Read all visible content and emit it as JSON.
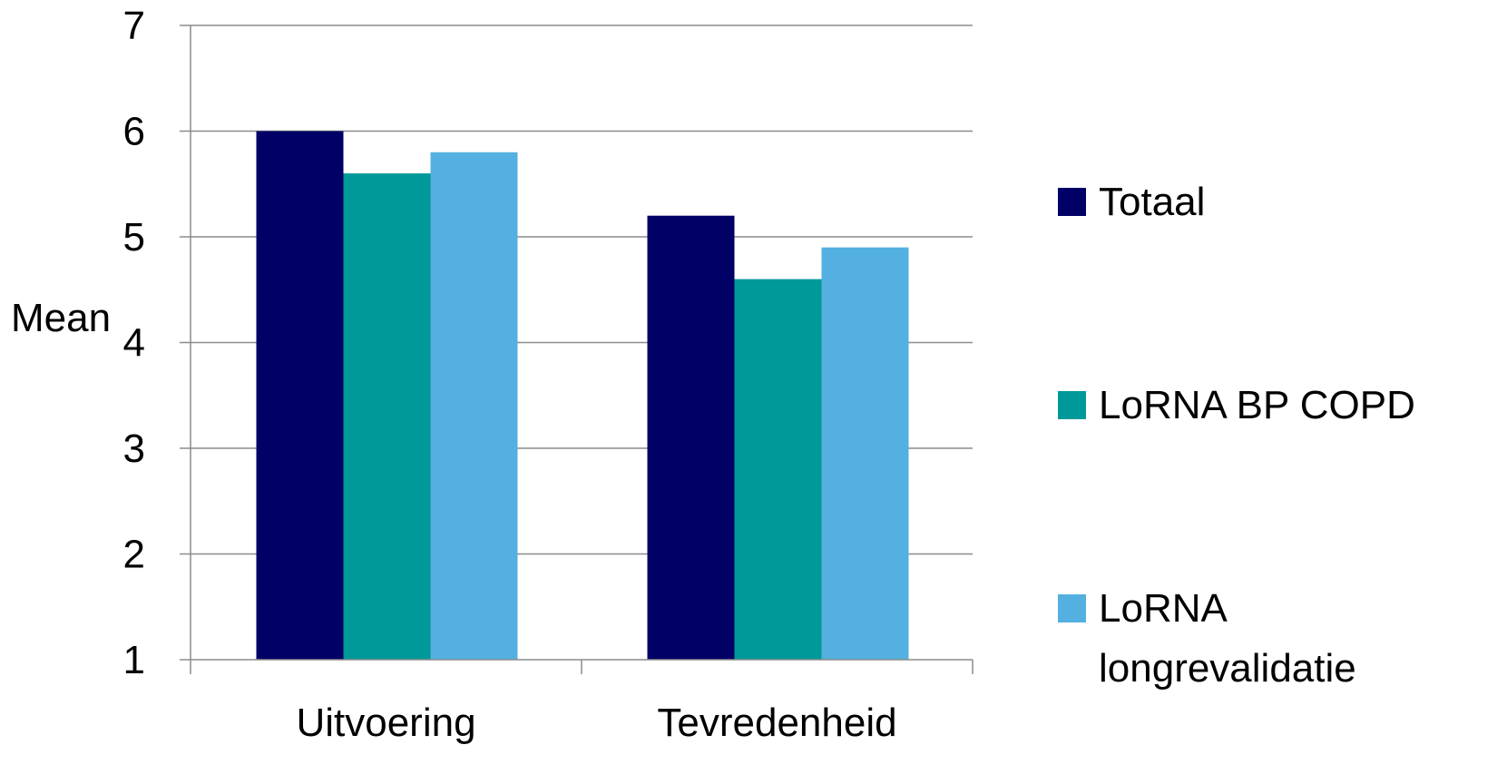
{
  "chart_data": {
    "type": "bar",
    "categories": [
      "Uitvoering",
      "Tevredenheid"
    ],
    "series": [
      {
        "name": "Totaal",
        "values": [
          6.0,
          5.2
        ],
        "color": "#000066"
      },
      {
        "name": "LoRNA BP COPD",
        "values": [
          5.6,
          4.6
        ],
        "color": "#009999"
      },
      {
        "name": "LoRNA longrevalidatie",
        "values": [
          5.8,
          4.9
        ],
        "color": "#54b0e0"
      }
    ],
    "ylabel": "Mean",
    "xlabel": "",
    "ylim": [
      1,
      7
    ],
    "yticks": [
      "1",
      "2",
      "3",
      "4",
      "5",
      "6",
      "7"
    ],
    "grid": true,
    "legend_position": "right"
  },
  "legend": {
    "items": [
      {
        "lines": [
          "Totaal"
        ]
      },
      {
        "lines": [
          "LoRNA BP COPD"
        ]
      },
      {
        "lines": [
          "LoRNA",
          "longrevalidatie"
        ]
      }
    ]
  }
}
